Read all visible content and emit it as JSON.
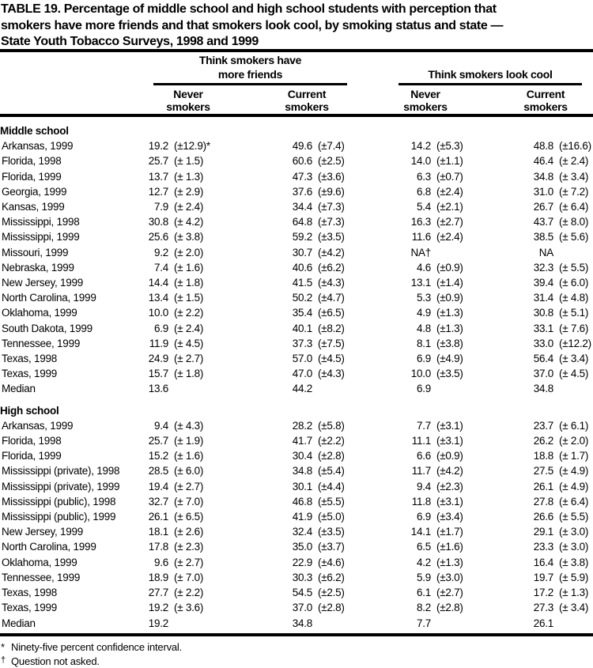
{
  "page": {
    "title_lines": [
      "TABLE 19.  Percentage of middle school and high school students with perception that",
      "smokers have more friends and that smokers look cool, by smoking status and state —",
      "State Youth Tobacco Surveys, 1998 and 1999"
    ]
  },
  "table": {
    "spanners": [
      {
        "label_lines": [
          "Think smokers have",
          "more friends"
        ]
      },
      {
        "label_lines": [
          "Think smokers look cool"
        ]
      }
    ],
    "columns": [
      {
        "line1": "Never",
        "line2": "smokers"
      },
      {
        "line1": "Current",
        "line2": "smokers"
      },
      {
        "line1": "Never",
        "line2": "smokers"
      },
      {
        "line1": "Current",
        "line2": "smokers"
      }
    ],
    "sections": [
      {
        "label": "Middle school",
        "rows": [
          {
            "state": "Arkansas, 1999",
            "cells": [
              "19.2",
              "(±12.9)*",
              "49.6",
              "(±7.4)",
              "14.2",
              "(±5.3)",
              "48.8",
              "(±16.6)"
            ]
          },
          {
            "state": "Florida, 1998",
            "cells": [
              "25.7",
              "(± 1.5)",
              "60.6",
              "(±2.5)",
              "14.0",
              "(±1.1)",
              "46.4",
              "(± 2.4)"
            ]
          },
          {
            "state": "Florida, 1999",
            "cells": [
              "13.7",
              "(± 1.3)",
              "47.3",
              "(±3.6)",
              "6.3",
              "(±0.7)",
              "34.8",
              "(± 3.4)"
            ]
          },
          {
            "state": "Georgia, 1999",
            "cells": [
              "12.7",
              "(± 2.9)",
              "37.6",
              "(±9.6)",
              "6.8",
              "(±2.4)",
              "31.0",
              "(± 7.2)"
            ]
          },
          {
            "state": "Kansas, 1999",
            "cells": [
              "7.9",
              "(± 2.4)",
              "34.4",
              "(±7.3)",
              "5.4",
              "(±2.1)",
              "26.7",
              "(± 6.4)"
            ]
          },
          {
            "state": "Mississippi, 1998",
            "cells": [
              "30.8",
              "(± 4.2)",
              "64.8",
              "(±7.3)",
              "16.3",
              "(±2.7)",
              "43.7",
              "(± 8.0)"
            ]
          },
          {
            "state": "Mississippi, 1999",
            "cells": [
              "25.6",
              "(± 3.8)",
              "59.2",
              "(±3.5)",
              "11.6",
              "(±2.4)",
              "38.5",
              "(± 5.6)"
            ]
          },
          {
            "state": "Missouri, 1999",
            "cells": [
              "9.2",
              "(± 2.0)",
              "30.7",
              "(±4.2)",
              "NA†",
              "",
              "NA",
              ""
            ]
          },
          {
            "state": "Nebraska, 1999",
            "cells": [
              "7.4",
              "(± 1.6)",
              "40.6",
              "(±6.2)",
              "4.6",
              "(±0.9)",
              "32.3",
              "(± 5.5)"
            ]
          },
          {
            "state": "New Jersey, 1999",
            "cells": [
              "14.4",
              "(± 1.8)",
              "41.5",
              "(±4.3)",
              "13.1",
              "(±1.4)",
              "39.4",
              "(± 6.0)"
            ]
          },
          {
            "state": "North Carolina, 1999",
            "cells": [
              "13.4",
              "(± 1.5)",
              "50.2",
              "(±4.7)",
              "5.3",
              "(±0.9)",
              "31.4",
              "(± 4.8)"
            ]
          },
          {
            "state": "Oklahoma, 1999",
            "cells": [
              "10.0",
              "(± 2.2)",
              "35.4",
              "(±6.5)",
              "4.9",
              "(±1.3)",
              "30.8",
              "(± 5.1)"
            ]
          },
          {
            "state": "South Dakota, 1999",
            "cells": [
              "6.9",
              "(± 2.4)",
              "40.1",
              "(±8.2)",
              "4.8",
              "(±1.3)",
              "33.1",
              "(± 7.6)"
            ]
          },
          {
            "state": "Tennessee, 1999",
            "cells": [
              "11.9",
              "(± 4.5)",
              "37.3",
              "(±7.5)",
              "8.1",
              "(±3.8)",
              "33.0",
              "(±12.2)"
            ]
          },
          {
            "state": "Texas, 1998",
            "cells": [
              "24.9",
              "(± 2.7)",
              "57.0",
              "(±4.5)",
              "6.9",
              "(±4.9)",
              "56.4",
              "(± 3.4)"
            ]
          },
          {
            "state": "Texas, 1999",
            "cells": [
              "15.7",
              "(± 1.8)",
              "47.0",
              "(±4.3)",
              "10.0",
              "(±3.5)",
              "37.0",
              "(± 4.5)"
            ]
          },
          {
            "state": "Median",
            "cells": [
              "13.6",
              "",
              "44.2",
              "",
              "6.9",
              "",
              "34.8",
              ""
            ]
          }
        ]
      },
      {
        "label": "High school",
        "rows": [
          {
            "state": "Arkansas, 1999",
            "cells": [
              "9.4",
              "(± 4.3)",
              "28.2",
              "(±5.8)",
              "7.7",
              "(±3.1)",
              "23.7",
              "(± 6.1)"
            ]
          },
          {
            "state": "Florida, 1998",
            "cells": [
              "25.7",
              "(± 1.9)",
              "41.7",
              "(±2.2)",
              "11.1",
              "(±3.1)",
              "26.2",
              "(± 2.0)"
            ]
          },
          {
            "state": "Florida, 1999",
            "cells": [
              "15.2",
              "(± 1.6)",
              "30.4",
              "(±2.8)",
              "6.6",
              "(±0.9)",
              "18.8",
              "(± 1.7)"
            ]
          },
          {
            "state": "Mississippi (private), 1998",
            "cells": [
              "28.5",
              "(± 6.0)",
              "34.8",
              "(±5.4)",
              "11.7",
              "(±4.2)",
              "27.5",
              "(± 4.9)"
            ]
          },
          {
            "state": "Mississippi (private), 1999",
            "cells": [
              "19.4",
              "(± 2.7)",
              "30.1",
              "(±4.4)",
              "9.4",
              "(±2.3)",
              "26.1",
              "(± 4.9)"
            ]
          },
          {
            "state": "Mississippi (public), 1998",
            "cells": [
              "32.7",
              "(± 7.0)",
              "46.8",
              "(±5.5)",
              "11.8",
              "(±3.1)",
              "27.8",
              "(± 6.4)"
            ]
          },
          {
            "state": "Mississippi (public), 1999",
            "cells": [
              "26.1",
              "(± 6.5)",
              "41.9",
              "(±5.0)",
              "6.9",
              "(±3.4)",
              "26.6",
              "(± 5.5)"
            ]
          },
          {
            "state": "New Jersey, 1999",
            "cells": [
              "18.1",
              "(± 2.6)",
              "32.4",
              "(±3.5)",
              "14.1",
              "(±1.7)",
              "29.1",
              "(± 3.0)"
            ]
          },
          {
            "state": "North Carolina, 1999",
            "cells": [
              "17.8",
              "(± 2.3)",
              "35.0",
              "(±3.7)",
              "6.5",
              "(±1.6)",
              "23.3",
              "(± 3.0)"
            ]
          },
          {
            "state": "Oklahoma, 1999",
            "cells": [
              "9.6",
              "(± 2.7)",
              "22.9",
              "(±4.6)",
              "4.2",
              "(±1.3)",
              "16.4",
              "(± 3.8)"
            ]
          },
          {
            "state": "Tennessee, 1999",
            "cells": [
              "18.9",
              "(± 7.0)",
              "30.3",
              "(±6.2)",
              "5.9",
              "(±3.0)",
              "19.7",
              "(± 5.9)"
            ]
          },
          {
            "state": "Texas, 1998",
            "cells": [
              "27.7",
              "(± 2.2)",
              "54.5",
              "(±2.5)",
              "6.1",
              "(±2.7)",
              "17.2",
              "(± 1.3)"
            ]
          },
          {
            "state": "Texas, 1999",
            "cells": [
              "19.2",
              "(± 3.6)",
              "37.0",
              "(±2.8)",
              "8.2",
              "(±2.8)",
              "27.3",
              "(± 3.4)"
            ]
          },
          {
            "state": "Median",
            "cells": [
              "19.2",
              "",
              "34.8",
              "",
              "7.7",
              "",
              "26.1",
              ""
            ]
          }
        ]
      }
    ]
  },
  "footnotes": [
    {
      "symbol": "*",
      "text": "Ninety-five percent confidence interval."
    },
    {
      "symbol": "†",
      "text": "Question not asked."
    }
  ],
  "colors": {
    "text": "#000000",
    "background": "#ffffff",
    "rule": "#000000"
  }
}
